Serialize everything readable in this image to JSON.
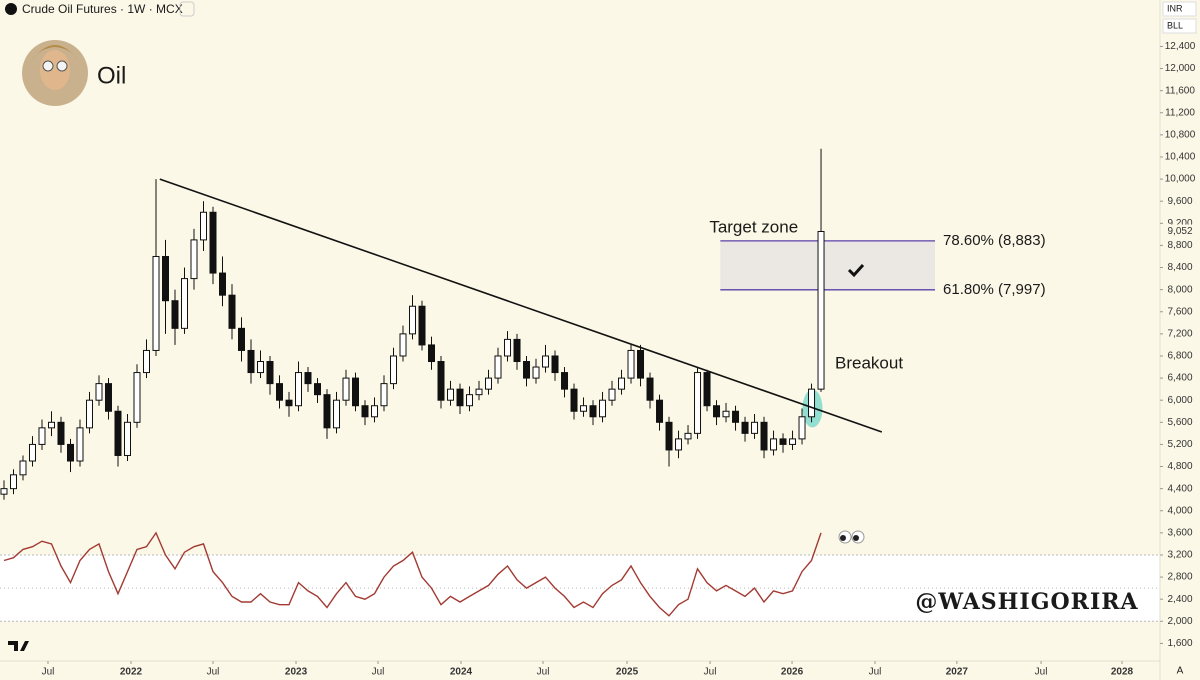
{
  "chart_data": {
    "type": "candlestick",
    "title": "Crude Oil Futures · 1W · MCX",
    "author": "Oil",
    "handle": "@WASHIGORIRA",
    "currency": "INR",
    "unit": "BLL",
    "scale_mode": "A",
    "annotations": {
      "target": "Target zone",
      "breakout": "Breakout"
    },
    "price_label": {
      "value": 9052,
      "label": "9,052"
    },
    "open": [
      4300,
      4400,
      4650,
      4900,
      5200,
      5500,
      5600,
      5200,
      4900,
      5500,
      6000,
      6300,
      5800,
      5000,
      5600,
      6500,
      6900,
      8600,
      7800,
      7300,
      8200,
      8900,
      9400,
      8300,
      7900,
      7300,
      6900,
      6500,
      6700,
      6300,
      6000,
      5900,
      6500,
      6300,
      6100,
      5500,
      6000,
      6400,
      5900,
      5700,
      5900,
      6300,
      6800,
      7200,
      7700,
      7000,
      6700,
      6000,
      6200,
      5900,
      6100,
      6200,
      6400,
      6800,
      7100,
      6700,
      6400,
      6600,
      6800,
      6500,
      6200,
      5800,
      5900,
      5700,
      6000,
      6200,
      6400,
      6900,
      6400,
      6000,
      5600,
      5100,
      5300,
      5400,
      6500,
      5900,
      5700,
      5800,
      5600,
      5400,
      5600,
      5100,
      5300,
      5200,
      5300,
      5700,
      6200
    ],
    "high": [
      4550,
      4750,
      5000,
      5350,
      5650,
      5800,
      5700,
      5300,
      5650,
      6150,
      6450,
      6400,
      5900,
      5750,
      6650,
      7100,
      10000,
      8900,
      8000,
      8400,
      9100,
      9600,
      9500,
      8600,
      8100,
      7500,
      7100,
      6900,
      6800,
      6450,
      6150,
      6700,
      6600,
      6400,
      6200,
      6150,
      6550,
      6500,
      6000,
      6050,
      6450,
      6950,
      7350,
      7900,
      7800,
      7150,
      6800,
      6350,
      6300,
      6250,
      6350,
      6550,
      6950,
      7250,
      7200,
      6800,
      6750,
      7000,
      6900,
      6600,
      6300,
      6050,
      6000,
      6150,
      6350,
      6550,
      7000,
      7000,
      6500,
      6100,
      5700,
      5450,
      5550,
      6600,
      6550,
      6000,
      5950,
      5900,
      5700,
      5750,
      5700,
      5450,
      5400,
      5450,
      5850,
      6300,
      10550
    ],
    "low": [
      4200,
      4300,
      4550,
      4800,
      5100,
      5350,
      5050,
      4700,
      4800,
      5400,
      5900,
      5650,
      4800,
      4900,
      5500,
      6400,
      6800,
      7200,
      7000,
      7200,
      8000,
      8700,
      8100,
      7700,
      7100,
      6700,
      6300,
      6400,
      6100,
      5850,
      5700,
      5800,
      6150,
      5950,
      5300,
      5400,
      5900,
      5800,
      5550,
      5600,
      5800,
      6200,
      6700,
      7100,
      6900,
      6550,
      5850,
      5900,
      5750,
      5800,
      6000,
      6100,
      6300,
      6700,
      6550,
      6250,
      6300,
      6500,
      6350,
      6050,
      5650,
      5700,
      5550,
      5600,
      5900,
      6100,
      6300,
      6250,
      5850,
      5450,
      4800,
      4950,
      5200,
      5300,
      5800,
      5550,
      5600,
      5450,
      5250,
      5300,
      4950,
      5000,
      5050,
      5100,
      5200,
      5600,
      6150
    ],
    "close": [
      4400,
      4650,
      4900,
      5200,
      5500,
      5600,
      5200,
      4900,
      5500,
      6000,
      6300,
      5800,
      5000,
      5600,
      6500,
      6900,
      8600,
      7800,
      7300,
      8200,
      8900,
      9400,
      8300,
      7900,
      7300,
      6900,
      6500,
      6700,
      6300,
      6000,
      5900,
      6500,
      6300,
      6100,
      5500,
      6000,
      6400,
      5900,
      5700,
      5900,
      6300,
      6800,
      7200,
      7700,
      7000,
      6700,
      6000,
      6200,
      5900,
      6100,
      6200,
      6400,
      6800,
      7100,
      6700,
      6400,
      6600,
      6800,
      6500,
      6200,
      5800,
      5900,
      5700,
      6000,
      6200,
      6400,
      6900,
      6400,
      6000,
      5600,
      5100,
      5300,
      5400,
      6500,
      5900,
      5700,
      5800,
      5600,
      5400,
      5600,
      5100,
      5300,
      5200,
      5300,
      5700,
      6200,
      9052
    ],
    "indicator": {
      "color": "#a23a32",
      "levels": [
        3200,
        2600,
        2000
      ],
      "values": [
        3100,
        3150,
        3300,
        3350,
        3450,
        3400,
        3000,
        2700,
        3100,
        3300,
        3400,
        2900,
        2500,
        2900,
        3300,
        3350,
        3600,
        3200,
        2950,
        3250,
        3350,
        3400,
        2900,
        2700,
        2450,
        2350,
        2350,
        2500,
        2350,
        2300,
        2300,
        2700,
        2550,
        2450,
        2250,
        2500,
        2700,
        2450,
        2400,
        2500,
        2800,
        3000,
        3100,
        3250,
        2800,
        2600,
        2300,
        2450,
        2350,
        2450,
        2550,
        2650,
        2850,
        3000,
        2750,
        2600,
        2700,
        2800,
        2600,
        2450,
        2250,
        2350,
        2250,
        2500,
        2650,
        2750,
        3000,
        2700,
        2450,
        2250,
        2100,
        2300,
        2400,
        2950,
        2700,
        2550,
        2650,
        2550,
        2450,
        2600,
        2350,
        2550,
        2500,
        2550,
        2900,
        3100,
        3600
      ]
    },
    "trendline": {
      "x": [
        16.4,
        92.4
      ],
      "y": [
        10000,
        5425
      ]
    },
    "fib": {
      "x": [
        75.4,
        98.0
      ],
      "levels": [
        {
          "value": 8883,
          "label": "78.60% (8,883)"
        },
        {
          "value": 7997,
          "label": "61.80% (7,997)"
        }
      ]
    },
    "xlim": [
      -0.42,
      121.68
    ],
    "ylim": [
      1300,
      13240
    ],
    "grid": false,
    "xticks": [
      {
        "value": 4.63,
        "label": "Jul"
      },
      {
        "value": 13.37,
        "label": "2022"
      },
      {
        "value": 22.0,
        "label": "Jul"
      },
      {
        "value": 30.74,
        "label": "2023"
      },
      {
        "value": 39.37,
        "label": "Jul"
      },
      {
        "value": 48.1,
        "label": "2024"
      },
      {
        "value": 56.74,
        "label": "Jul"
      },
      {
        "value": 65.58,
        "label": "2025"
      },
      {
        "value": 74.32,
        "label": "Jul"
      },
      {
        "value": 82.95,
        "label": "2026"
      },
      {
        "value": 91.68,
        "label": "Jul"
      },
      {
        "value": 100.3,
        "label": "2027"
      },
      {
        "value": 109.16,
        "label": "Jul"
      },
      {
        "value": 117.68,
        "label": "2028"
      }
    ],
    "yticks": [
      {
        "value": 1600,
        "label": "1,600"
      },
      {
        "value": 2000,
        "label": "2,000"
      },
      {
        "value": 2400,
        "label": "2,400"
      },
      {
        "value": 2800,
        "label": "2,800"
      },
      {
        "value": 3200,
        "label": "3,200"
      },
      {
        "value": 3600,
        "label": "3,600"
      },
      {
        "value": 4000,
        "label": "4,000"
      },
      {
        "value": 4400,
        "label": "4,400"
      },
      {
        "value": 4800,
        "label": "4,800"
      },
      {
        "value": 5200,
        "label": "5,200"
      },
      {
        "value": 5600,
        "label": "5,600"
      },
      {
        "value": 6000,
        "label": "6,000"
      },
      {
        "value": 6400,
        "label": "6,400"
      },
      {
        "value": 6800,
        "label": "6,800"
      },
      {
        "value": 7200,
        "label": "7,200"
      },
      {
        "value": 7600,
        "label": "7,600"
      },
      {
        "value": 8000,
        "label": "8,000"
      },
      {
        "value": 8400,
        "label": "8,400"
      },
      {
        "value": 8800,
        "label": "8,800"
      },
      {
        "value": 9200,
        "label": "9,200"
      },
      {
        "value": 9600,
        "label": "9,600"
      },
      {
        "value": 10000,
        "label": "10,000"
      },
      {
        "value": 10400,
        "label": "10,400"
      },
      {
        "value": 10800,
        "label": "10,800"
      },
      {
        "value": 11200,
        "label": "11,200"
      },
      {
        "value": 11600,
        "label": "11,600"
      },
      {
        "value": 12000,
        "label": "12,000"
      },
      {
        "value": 12400,
        "label": "12,400"
      }
    ]
  }
}
